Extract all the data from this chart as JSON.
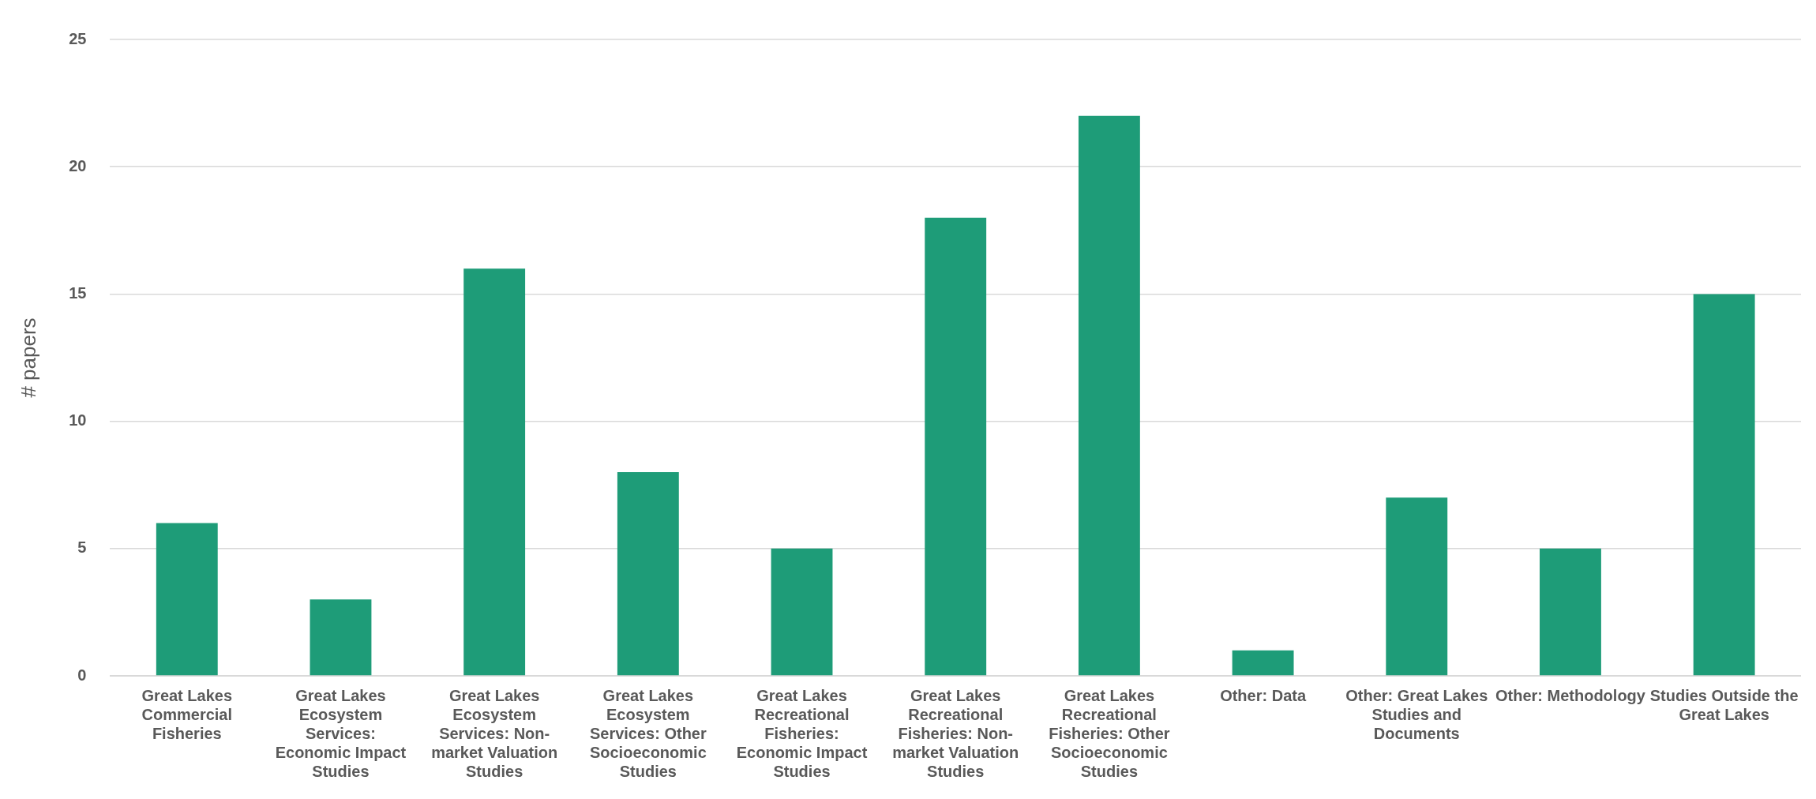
{
  "chart_data": {
    "type": "bar",
    "ylabel": "# papers",
    "categories": [
      "Great Lakes Commercial Fisheries",
      "Great Lakes Ecosystem Services: Economic Impact Studies",
      "Great Lakes Ecosystem Services: Non-market Valuation Studies",
      "Great Lakes Ecosystem Services: Other Socioeconomic Studies",
      "Great Lakes Recreational Fisheries: Economic Impact Studies",
      "Great Lakes Recreational Fisheries: Non-market Valuation Studies",
      "Great Lakes Recreational Fisheries: Other Socioeconomic Studies",
      "Other: Data",
      "Other: Great Lakes Studies and Documents",
      "Other: Methodology",
      "Studies Outside the Great Lakes"
    ],
    "values": [
      6,
      3,
      16,
      8,
      5,
      18,
      22,
      1,
      7,
      5,
      15
    ],
    "color": "#1e9c78",
    "ylim": [
      0,
      25
    ],
    "yticks": [
      0,
      5,
      10,
      15,
      20,
      25
    ],
    "grid": "y",
    "legend": false
  }
}
